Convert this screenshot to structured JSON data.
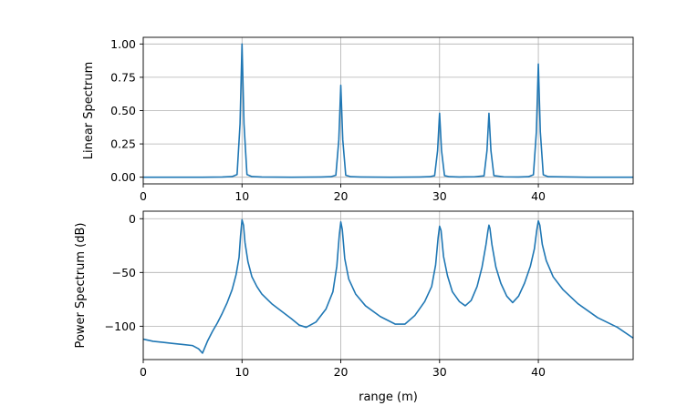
{
  "chart_data": [
    {
      "type": "line",
      "ylabel": "Linear Spectrum",
      "xlabel": "",
      "xlim": [
        0,
        49.6
      ],
      "ylim": [
        -0.05,
        1.05
      ],
      "xticks": [
        "0",
        "10",
        "20",
        "30",
        "40"
      ],
      "xtick_values": [
        0,
        10,
        20,
        30,
        40
      ],
      "yticks": [
        "0.00",
        "0.25",
        "0.50",
        "0.75",
        "1.00"
      ],
      "ytick_values": [
        0,
        0.25,
        0.5,
        0.75,
        1.0
      ],
      "grid": true,
      "series": [
        {
          "color": "#1f77b4",
          "x": [
            0,
            6,
            8,
            9,
            9.5,
            9.8,
            10,
            10.2,
            10.5,
            11,
            12,
            15,
            18,
            19,
            19.5,
            19.8,
            20,
            20.2,
            20.5,
            21,
            22,
            25,
            28,
            29,
            29.5,
            29.8,
            30,
            30.2,
            30.5,
            31,
            32,
            33.5,
            34.5,
            34.8,
            35,
            35.2,
            35.5,
            36.5,
            38,
            39,
            39.5,
            39.8,
            40,
            40.2,
            40.5,
            41,
            45,
            49.6
          ],
          "y": [
            0,
            0,
            0.002,
            0.005,
            0.02,
            0.4,
            1.0,
            0.4,
            0.02,
            0.005,
            0.002,
            0,
            0.002,
            0.004,
            0.015,
            0.28,
            0.69,
            0.28,
            0.015,
            0.004,
            0.002,
            0,
            0.002,
            0.004,
            0.012,
            0.2,
            0.48,
            0.2,
            0.012,
            0.004,
            0.002,
            0.003,
            0.01,
            0.2,
            0.48,
            0.2,
            0.012,
            0.003,
            0.002,
            0.004,
            0.018,
            0.34,
            0.85,
            0.34,
            0.018,
            0.004,
            0,
            0
          ]
        }
      ]
    },
    {
      "type": "line",
      "ylabel": "Power Spectrum (dB)",
      "xlabel": "range (m)",
      "xlim": [
        0,
        49.6
      ],
      "ylim": [
        -131,
        7
      ],
      "xticks": [
        "0",
        "10",
        "20",
        "30",
        "40"
      ],
      "xtick_values": [
        0,
        10,
        20,
        30,
        40
      ],
      "yticks": [
        "0",
        "−50",
        "−100"
      ],
      "ytick_values": [
        0,
        -50,
        -100
      ],
      "grid": true,
      "series": [
        {
          "color": "#1f77b4",
          "x": [
            0,
            1,
            2,
            3,
            4,
            5,
            5.6,
            6,
            6.5,
            7,
            7.5,
            8,
            8.5,
            9,
            9.4,
            9.7,
            9.85,
            10,
            10.15,
            10.3,
            10.6,
            11,
            11.5,
            12,
            13,
            14,
            15,
            15.8,
            16.5,
            17.5,
            18.5,
            19.2,
            19.6,
            19.85,
            20,
            20.15,
            20.4,
            20.8,
            21.5,
            22.5,
            24,
            25.5,
            26.5,
            27.5,
            28.5,
            29.2,
            29.6,
            29.85,
            30,
            30.15,
            30.4,
            30.8,
            31.3,
            32,
            32.6,
            33.2,
            33.8,
            34.3,
            34.7,
            34.9,
            35,
            35.1,
            35.3,
            35.7,
            36.2,
            36.8,
            37.4,
            38,
            38.6,
            39.2,
            39.6,
            39.85,
            40,
            40.15,
            40.4,
            40.8,
            41.5,
            42.5,
            44,
            46,
            48,
            49.6
          ],
          "y": [
            -112,
            -114,
            -115,
            -116,
            -117,
            -118,
            -121,
            -125,
            -114,
            -105,
            -97,
            -88,
            -78,
            -66,
            -52,
            -36,
            -16,
            -1,
            -6,
            -22,
            -40,
            -54,
            -63,
            -70,
            -79,
            -86,
            -93,
            -99,
            -101,
            -96,
            -84,
            -68,
            -44,
            -15,
            -3,
            -10,
            -37,
            -56,
            -70,
            -81,
            -91,
            -98,
            -98,
            -90,
            -77,
            -63,
            -43,
            -18,
            -7,
            -11,
            -35,
            -53,
            -68,
            -77,
            -81,
            -76,
            -63,
            -45,
            -24,
            -11,
            -6,
            -9,
            -24,
            -45,
            -60,
            -72,
            -78,
            -72,
            -60,
            -44,
            -28,
            -10,
            -2,
            -6,
            -24,
            -39,
            -54,
            -66,
            -79,
            -92,
            -101,
            -111
          ]
        }
      ]
    }
  ]
}
